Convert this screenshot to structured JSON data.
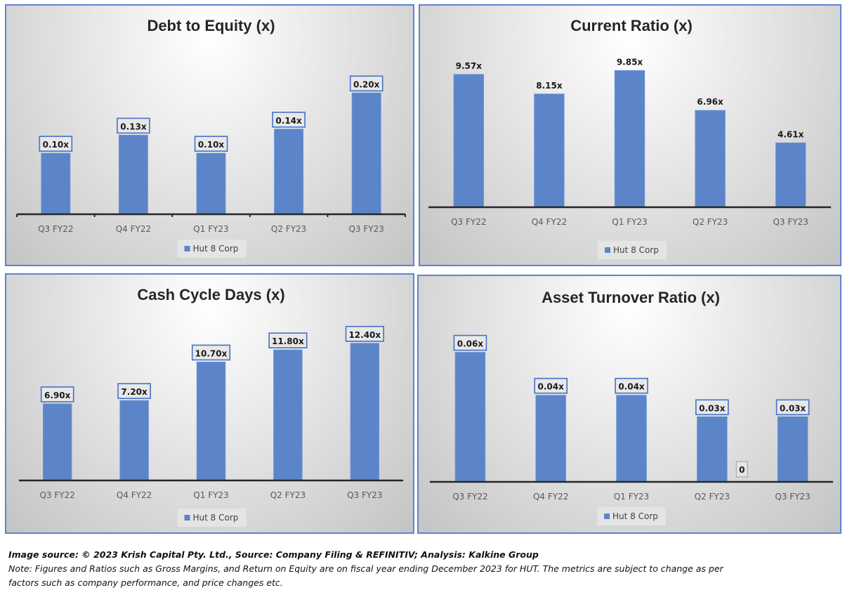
{
  "chart_data": [
    {
      "type": "bar",
      "title": "Debt to Equity (x)",
      "categories": [
        "Q3 FY22",
        "Q4 FY22",
        "Q1 FY23",
        "Q2 FY23",
        "Q3 FY23"
      ],
      "series": [
        {
          "name": "Hut 8 Corp",
          "values": [
            0.1,
            0.13,
            0.1,
            0.14,
            0.2
          ],
          "labels": [
            "0.10x",
            "0.13x",
            "0.10x",
            "0.14x",
            "0.20x"
          ]
        }
      ],
      "xlabel": "",
      "ylabel": "",
      "ylim": [
        0,
        0.24
      ],
      "grid": false,
      "legend": "bottom",
      "boxed_labels": true,
      "axis_ticks": true
    },
    {
      "type": "bar",
      "title": "Current Ratio (x)",
      "categories": [
        "Q3 FY22",
        "Q4 FY22",
        "Q1 FY23",
        "Q2 FY23",
        "Q3 FY23"
      ],
      "series": [
        {
          "name": "Hut 8 Corp",
          "values": [
            9.57,
            8.15,
            9.85,
            6.96,
            4.61
          ],
          "labels": [
            "9.57x",
            "8.15x",
            "9.85x",
            "6.96x",
            "4.61x"
          ]
        }
      ],
      "xlabel": "",
      "ylabel": "",
      "ylim": [
        0,
        11.5
      ],
      "grid": false,
      "legend": "bottom",
      "boxed_labels": false,
      "axis_ticks": false
    },
    {
      "type": "bar",
      "title": "Cash Cycle Days (x)",
      "categories": [
        "Q3 FY22",
        "Q4 FY22",
        "Q1 FY23",
        "Q2 FY23",
        "Q3 FY23"
      ],
      "series": [
        {
          "name": "Hut 8 Corp",
          "values": [
            6.9,
            7.2,
            10.7,
            11.8,
            12.4
          ],
          "labels": [
            "6.90x",
            "7.20x",
            "10.70x",
            "11.80x",
            "12.40x"
          ]
        }
      ],
      "xlabel": "",
      "ylabel": "",
      "ylim": [
        0,
        14.3
      ],
      "grid": false,
      "legend": "bottom",
      "boxed_labels": true,
      "axis_ticks": false
    },
    {
      "type": "bar",
      "title": "Asset Turnover Ratio (x)",
      "categories": [
        "Q3 FY22",
        "Q4 FY22",
        "Q1 FY23",
        "Q2 FY23",
        "Q3 FY23"
      ],
      "series": [
        {
          "name": "Hut 8 Corp",
          "values": [
            0.06,
            0.04,
            0.04,
            0.03,
            0.03
          ],
          "labels": [
            "0.06x",
            "0.04x",
            "0.04x",
            "0.03x",
            "0.03x"
          ]
        }
      ],
      "xlabel": "",
      "ylabel": "",
      "ylim": [
        0,
        0.07
      ],
      "grid": false,
      "legend": "bottom",
      "boxed_labels": true,
      "axis_ticks": false,
      "annotations": [
        {
          "text": "0",
          "category": "Q2 FY23",
          "position": "right-of-bar-at-axis"
        }
      ]
    }
  ],
  "colors": {
    "bar": "#5b84c9",
    "label_border": "#4472c4",
    "panel_border": "#5b84d0"
  },
  "footer": {
    "source": "Image source: © 2023 Krish Capital Pty. Ltd., Source: Company Filing & REFINITIV; Analysis: Kalkine Group",
    "note_line1": "Note: Figures and Ratios such as  Gross Margins, and Return on Equity are on fiscal year ending  December  2023  for HUT. The metrics are subject to change as per",
    "note_line2": "factors such as company performance, and price changes etc."
  }
}
